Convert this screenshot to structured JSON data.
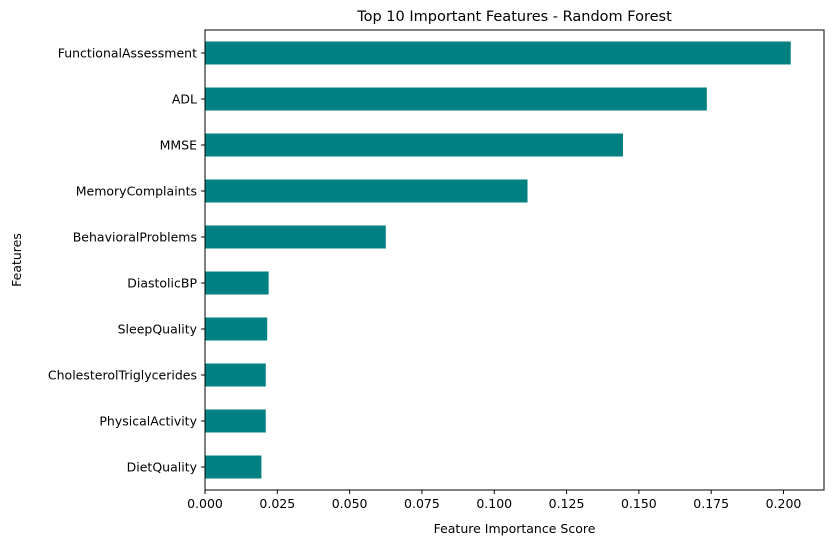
{
  "chart_data": {
    "type": "bar",
    "orientation": "horizontal",
    "title": "Top 10 Important Features - Random Forest",
    "xlabel": "Feature Importance Score",
    "ylabel": "Features",
    "xlim": [
      0,
      0.214
    ],
    "xticks": [
      0.0,
      0.025,
      0.05,
      0.075,
      0.1,
      0.125,
      0.15,
      0.175,
      0.2
    ],
    "xtick_labels": [
      "0.000",
      "0.025",
      "0.050",
      "0.075",
      "0.100",
      "0.125",
      "0.150",
      "0.175",
      "0.200"
    ],
    "categories": [
      "FunctionalAssessment",
      "ADL",
      "MMSE",
      "MemoryComplaints",
      "BehavioralProblems",
      "DiastolicBP",
      "SleepQuality",
      "CholesterolTriglycerides",
      "PhysicalActivity",
      "DietQuality"
    ],
    "values": [
      0.2025,
      0.1735,
      0.1445,
      0.1115,
      0.0625,
      0.022,
      0.0215,
      0.021,
      0.021,
      0.0195
    ],
    "bar_color": "#008080",
    "grid": false,
    "legend": "none"
  }
}
